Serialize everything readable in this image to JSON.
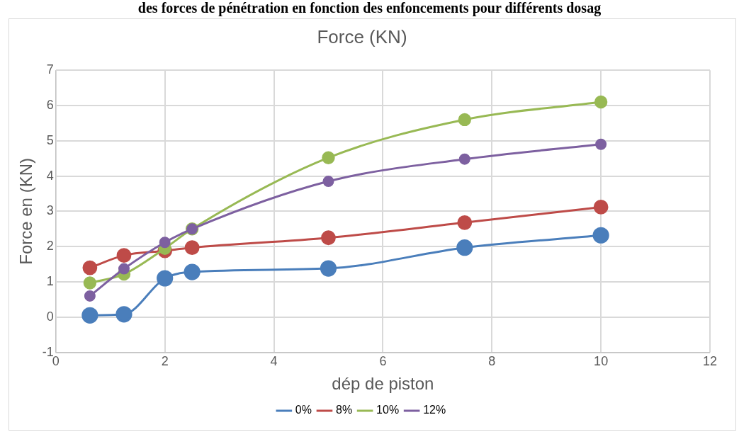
{
  "chart_data": {
    "type": "line",
    "title": "Force (KN)",
    "xlabel": "dép de piston",
    "ylabel": "Force en (KN)",
    "annotations": [
      "des forces de pénétration en fonction des enfoncements pour différents dosag"
    ],
    "x": [
      0.625,
      1.25,
      2,
      2.5,
      5,
      7.5,
      10
    ],
    "series": [
      {
        "name": "0%",
        "color": "#4a7ebb",
        "values": [
          0.05,
          0.08,
          1.1,
          1.28,
          1.38,
          1.97,
          2.32
        ]
      },
      {
        "name": "8%",
        "color": "#be4b48",
        "values": [
          1.4,
          1.75,
          1.88,
          1.97,
          2.25,
          2.68,
          3.12
        ]
      },
      {
        "name": "10%",
        "color": "#98b954",
        "values": [
          0.97,
          1.22,
          1.95,
          2.5,
          4.52,
          5.6,
          6.1
        ]
      },
      {
        "name": "12%",
        "color": "#7d60a0",
        "values": [
          0.6,
          1.37,
          2.12,
          2.5,
          3.85,
          4.48,
          4.9
        ]
      }
    ],
    "xlim": [
      0,
      12
    ],
    "xticks": [
      0,
      2,
      4,
      6,
      8,
      10,
      12
    ],
    "ylim": [
      -1,
      7
    ],
    "yticks": [
      -1,
      0,
      1,
      2,
      3,
      4,
      5,
      6,
      7
    ],
    "grid": true,
    "legend": "bottom",
    "marker": "circle",
    "line_style": "solid"
  }
}
